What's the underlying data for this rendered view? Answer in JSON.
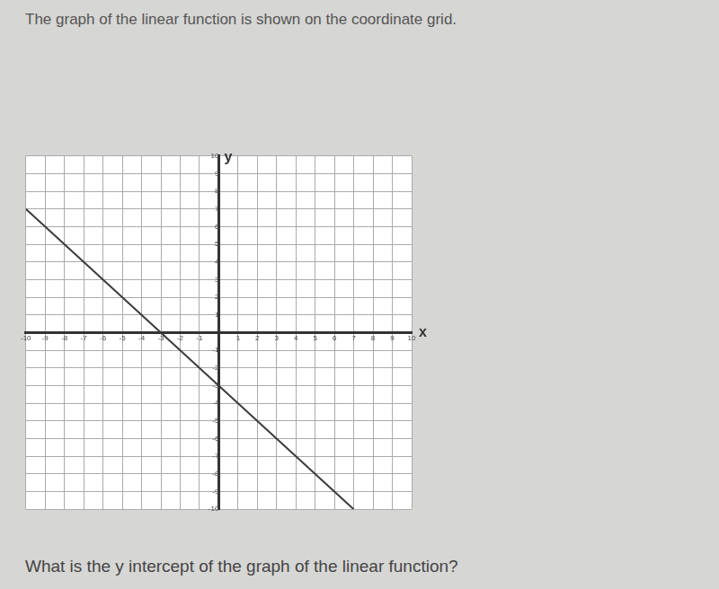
{
  "chart_data": {
    "type": "line",
    "title": "The graph of the linear function is shown on the coordinate grid.",
    "annotations": [
      "What is the y intercept of the graph of the linear function?"
    ],
    "x": [
      -10,
      7
    ],
    "values": [
      7,
      -10
    ],
    "color": "#3a3a3a",
    "xlim": [
      -10,
      10
    ],
    "ylim": [
      -10,
      10
    ],
    "xticks": [
      -10,
      -9,
      -8,
      -7,
      -6,
      -5,
      -4,
      -3,
      -2,
      -1,
      1,
      2,
      3,
      4,
      5,
      6,
      7,
      8,
      9,
      10
    ],
    "yticks": [
      -10,
      -9,
      -8,
      -7,
      -6,
      -5,
      -4,
      -3,
      -2,
      -1,
      1,
      2,
      3,
      4,
      5,
      6,
      7,
      8,
      9,
      10
    ],
    "x_label": "x",
    "y_label": "y",
    "grid": true
  }
}
